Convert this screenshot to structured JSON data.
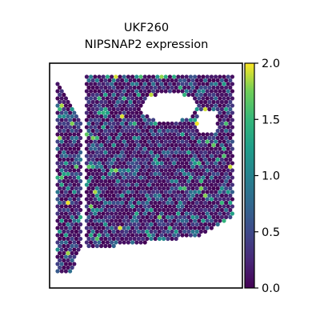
{
  "chart_data": {
    "type": "scatter",
    "title": "UKF260",
    "subtitle": "NIPSNAP2 expression",
    "xlabel": "",
    "ylabel": "",
    "colormap": "viridis",
    "colorbar": {
      "range": [
        0.0,
        2.0
      ],
      "ticks": [
        0.0,
        0.5,
        1.0,
        1.5,
        2.0
      ],
      "tick_labels": [
        "0.0",
        "0.5",
        "1.0",
        "1.5",
        "2.0"
      ],
      "position": "right"
    },
    "axes_visible": false,
    "grid": false,
    "spot_grid": "hexagonal",
    "summary": "Spatial spot plot of NIPSNAP2 expression per spot; values mostly 0.0-0.8 with sparse spots up to about 2.0; hole in upper-center region of tissue."
  }
}
